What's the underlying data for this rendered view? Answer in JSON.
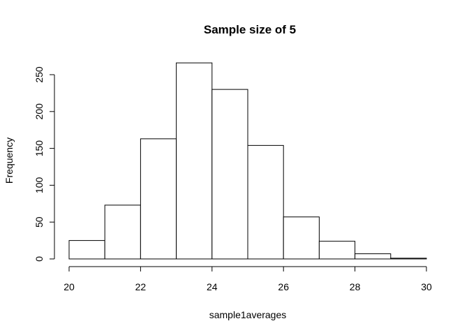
{
  "chart_data": {
    "type": "bar",
    "title": "Sample size of 5",
    "xlabel": "sample1averages",
    "ylabel": "Frequency",
    "bins": [
      {
        "x0": 20,
        "x1": 21,
        "count": 25
      },
      {
        "x0": 21,
        "x1": 22,
        "count": 73
      },
      {
        "x0": 22,
        "x1": 23,
        "count": 163
      },
      {
        "x0": 23,
        "x1": 24,
        "count": 266
      },
      {
        "x0": 24,
        "x1": 25,
        "count": 230
      },
      {
        "x0": 25,
        "x1": 26,
        "count": 154
      },
      {
        "x0": 26,
        "x1": 27,
        "count": 57
      },
      {
        "x0": 27,
        "x1": 28,
        "count": 24
      },
      {
        "x0": 28,
        "x1": 29,
        "count": 7
      },
      {
        "x0": 29,
        "x1": 30,
        "count": 1
      }
    ],
    "xlim": [
      20,
      30
    ],
    "ylim": [
      0,
      266
    ],
    "xticks": [
      "20",
      "22",
      "24",
      "26",
      "28",
      "30"
    ],
    "yticks": [
      "0",
      "50",
      "100",
      "150",
      "200",
      "250"
    ],
    "grid": false,
    "bar_fill": "#ffffff",
    "bar_stroke": "#000000"
  }
}
